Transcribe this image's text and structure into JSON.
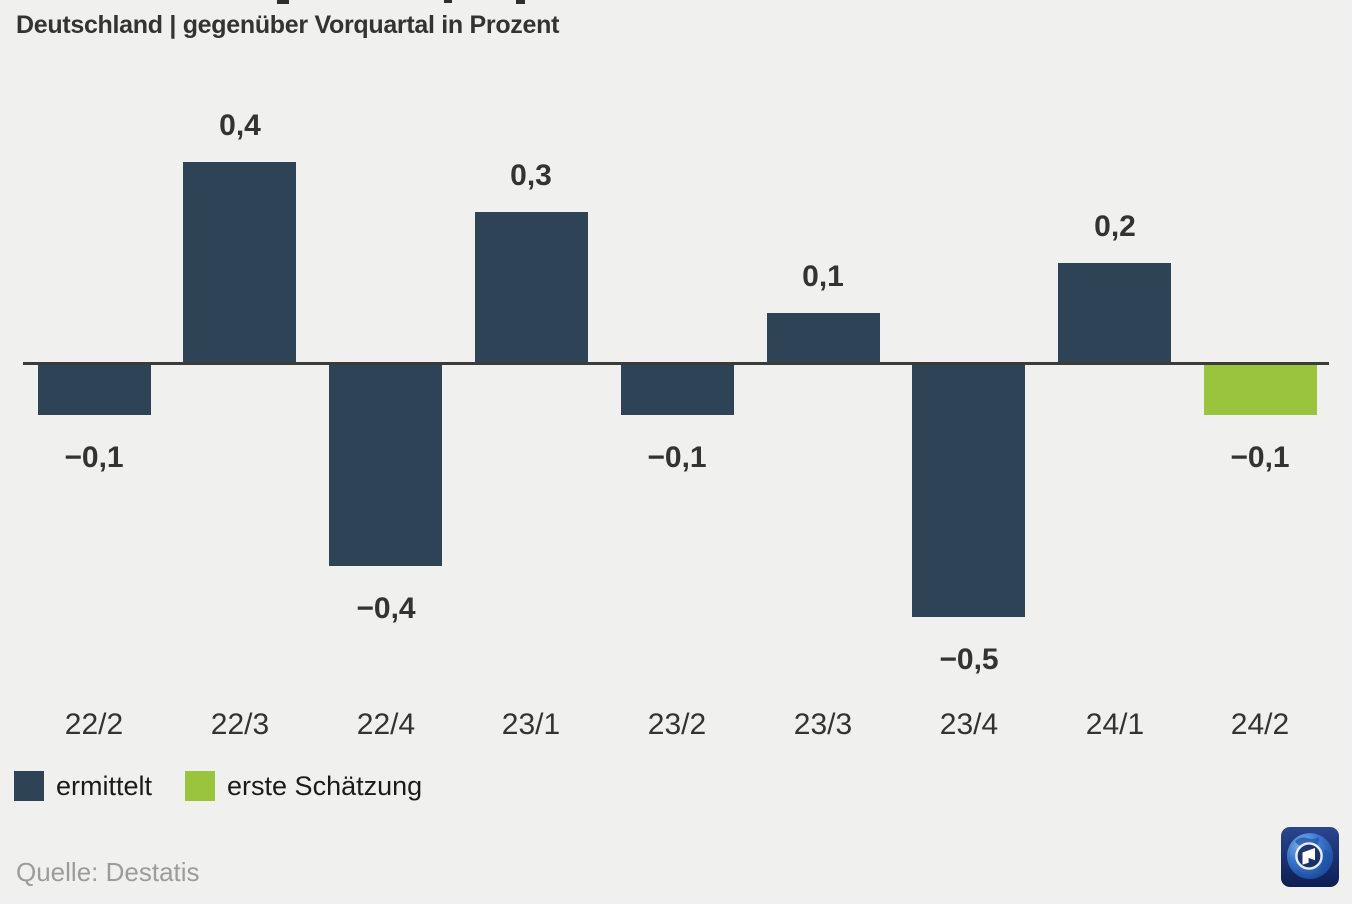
{
  "header": {
    "subtitle": "Deutschland | gegenüber Vorquartal in Prozent"
  },
  "chart_data": {
    "type": "bar",
    "subtitle": "Deutschland | gegenüber Vorquartal in Prozent",
    "categories": [
      "22/2",
      "22/3",
      "22/4",
      "23/1",
      "23/2",
      "23/3",
      "23/4",
      "24/1",
      "24/2"
    ],
    "values": [
      -0.1,
      0.4,
      -0.4,
      0.3,
      -0.1,
      0.1,
      -0.5,
      0.2,
      -0.1
    ],
    "value_labels": [
      "−0,1",
      "0,4",
      "−0,4",
      "0,3",
      "−0,1",
      "0,1",
      "−0,5",
      "0,2",
      "−0,1"
    ],
    "bar_series": [
      "ermittelt",
      "ermittelt",
      "ermittelt",
      "ermittelt",
      "ermittelt",
      "ermittelt",
      "ermittelt",
      "ermittelt",
      "erste Schätzung"
    ],
    "unit": "Prozent",
    "xlabel": "",
    "ylabel": "",
    "ylim": [
      -0.6,
      0.5
    ],
    "grid": false,
    "legend_position": "bottom-left"
  },
  "legend": {
    "items": [
      {
        "label": "ermittelt",
        "color": "#2f4356"
      },
      {
        "label": "erste Schätzung",
        "color": "#9ac33e"
      }
    ]
  },
  "source": {
    "label": "Quelle: Destatis"
  },
  "logo": {
    "name": "tagesschau-globe-logo"
  },
  "colors": {
    "background": "#f0f0ee",
    "bar_primary": "#2f4356",
    "bar_estimate": "#9ac33e",
    "axis": "#3b3b3a",
    "text": "#333333",
    "muted": "#9c9c9c"
  }
}
